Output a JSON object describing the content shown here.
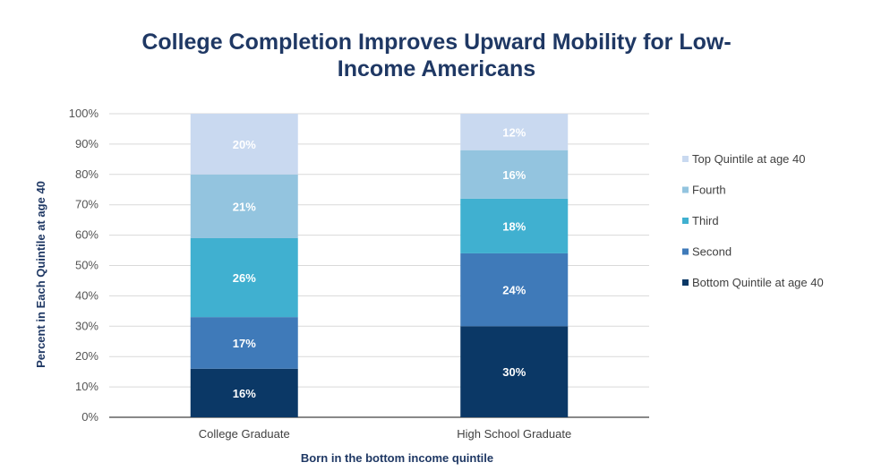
{
  "chart_data": {
    "type": "bar",
    "stacked": true,
    "title_lines": [
      "College Completion Improves Upward Mobility for Low-",
      "Income Americans"
    ],
    "xlabel": "Born in the bottom income quintile",
    "ylabel": "Percent in Each Quintile at age 40",
    "ylim": [
      0,
      100
    ],
    "yticks": [
      "0%",
      "10%",
      "20%",
      "30%",
      "40%",
      "50%",
      "60%",
      "70%",
      "80%",
      "90%",
      "100%"
    ],
    "grid": true,
    "legend_position": "right",
    "categories": [
      "College Graduate",
      "High School Graduate"
    ],
    "series": [
      {
        "name": "Bottom Quintile at age 40",
        "color": "#0b3866",
        "values": [
          16,
          30
        ],
        "labels": [
          "16%",
          "30%"
        ]
      },
      {
        "name": "Second",
        "color": "#3f7ab9",
        "values": [
          17,
          24
        ],
        "labels": [
          "17%",
          "24%"
        ]
      },
      {
        "name": "Third",
        "color": "#40b0d0",
        "values": [
          26,
          18
        ],
        "labels": [
          "26%",
          "18%"
        ]
      },
      {
        "name": "Fourth",
        "color": "#93c4df",
        "values": [
          21,
          16
        ],
        "labels": [
          "21%",
          "16%"
        ]
      },
      {
        "name": "Top Quintile at age 40",
        "color": "#c9d9f0",
        "values": [
          20,
          12
        ],
        "labels": [
          "20%",
          "12%"
        ]
      }
    ]
  }
}
